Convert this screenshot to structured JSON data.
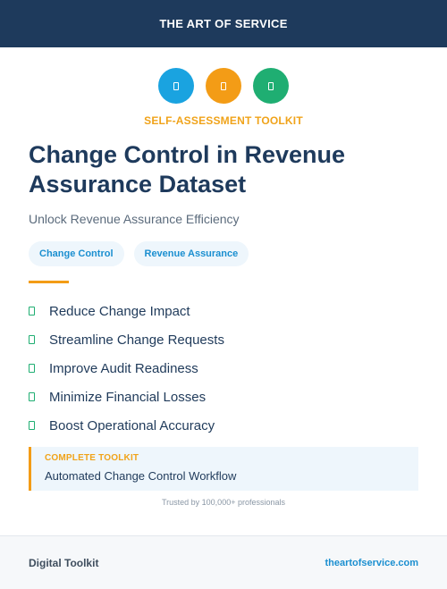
{
  "header": {
    "brand": "THE ART OF SERVICE"
  },
  "icons": [
    {
      "name": "document-icon",
      "color": "#1aa3e0"
    },
    {
      "name": "document-icon",
      "color": "#f39c16"
    },
    {
      "name": "document-icon",
      "color": "#1fae72"
    }
  ],
  "kicker": "SELF-ASSESSMENT TOOLKIT",
  "title": "Change Control in Revenue Assurance Dataset",
  "subtitle": "Unlock Revenue Assurance Efficiency",
  "tags": [
    "Change Control",
    "Revenue Assurance"
  ],
  "benefits": [
    "Reduce Change Impact",
    "Streamline Change Requests",
    "Improve Audit Readiness",
    "Minimize Financial Losses",
    "Boost Operational Accuracy"
  ],
  "callout": {
    "kicker": "COMPLETE TOOLKIT",
    "text": "Automated Change Control Workflow"
  },
  "trust": "Trusted by 100,000+ professionals",
  "footer": {
    "left": "Digital Toolkit",
    "right": "theartofservice.com"
  },
  "colors": {
    "navy": "#1e3a5c",
    "accent_orange": "#f39c16",
    "accent_blue": "#1aa3e0",
    "accent_green": "#1fae72"
  }
}
